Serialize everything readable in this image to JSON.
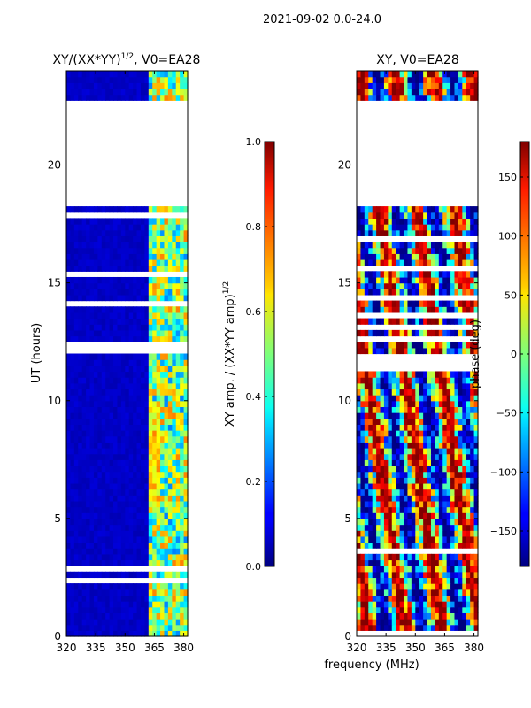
{
  "suptitle": "2021-09-02 0.0-24.0",
  "shared_xlabel": "frequency (MHz)",
  "chart_data": [
    {
      "type": "heatmap",
      "title_base": "XY/(XX*YY)",
      "title_exp": "1/2",
      "title_suffix": ", V0=EA28",
      "xlabel": "",
      "ylabel": "UT (hours)",
      "xlim": [
        320,
        382
      ],
      "xticks": [
        320,
        335,
        350,
        365,
        380
      ],
      "xtick_labels": [
        "320",
        "335",
        "350",
        "365",
        "380"
      ],
      "ylim": [
        0,
        24
      ],
      "yticks": [
        0,
        5,
        10,
        15,
        20
      ],
      "ytick_labels": [
        "0",
        "5",
        "10",
        "15",
        "20"
      ],
      "data_gaps_hours": [
        [
          18.2,
          22.7
        ]
      ],
      "colorbar": {
        "label_base": "XY amp. / (XX*YY amp)",
        "label_exp": "1/2",
        "range": [
          0.0,
          1.0
        ],
        "ticks": [
          0.0,
          0.2,
          0.4,
          0.6,
          0.8,
          1.0
        ],
        "tick_labels": [
          "0.0",
          "0.2",
          "0.4",
          "0.6",
          "0.8",
          "1.0"
        ],
        "colormap": "jet"
      }
    },
    {
      "type": "heatmap",
      "title_base": "XY, V0=EA28",
      "xlabel": "frequency (MHz)",
      "ylabel": "",
      "xlim": [
        320,
        382
      ],
      "xticks": [
        320,
        335,
        350,
        365,
        380
      ],
      "xtick_labels": [
        "320",
        "335",
        "350",
        "365",
        "380"
      ],
      "ylim": [
        0,
        24
      ],
      "yticks": [
        0,
        5,
        10,
        15,
        20
      ],
      "ytick_labels": [
        "0",
        "5",
        "10",
        "15",
        "20"
      ],
      "data_gaps_hours": [
        [
          18.2,
          22.7
        ]
      ],
      "colorbar": {
        "label_base": "phase (deg)",
        "range": [
          -180,
          180
        ],
        "ticks": [
          -150,
          -100,
          -50,
          0,
          50,
          100,
          150
        ],
        "tick_labels": [
          "−150",
          "−100",
          "−50",
          "0",
          "50",
          "100",
          "150"
        ],
        "colormap": "jet"
      }
    }
  ]
}
